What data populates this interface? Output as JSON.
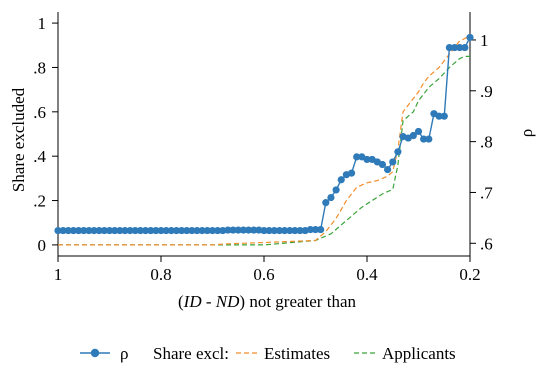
{
  "chart_data": {
    "type": "line",
    "xlabel": {
      "pre": "(",
      "it1": "ID",
      "mid": " - ",
      "it2": "ND",
      "post": ") not greater than"
    },
    "ylabel_left": "Share excluded",
    "ylabel_right": "ρ",
    "x_reversed": true,
    "xlim": [
      1.0,
      0.2
    ],
    "ylim_left": [
      -0.05,
      1.05
    ],
    "ylim_right": [
      0.575,
      1.055
    ],
    "x_ticks": [
      1.0,
      0.8,
      0.6,
      0.4,
      0.2
    ],
    "x_tick_labels": [
      "1",
      "0.8",
      "0.6",
      "0.4",
      "0.2"
    ],
    "y_left_ticks": [
      0,
      0.2,
      0.4,
      0.6,
      0.8,
      1.0
    ],
    "y_left_tick_labels": [
      "0",
      ".2",
      ".4",
      ".6",
      ".8",
      "1"
    ],
    "y_right_ticks": [
      0.6,
      0.7,
      0.8,
      0.9,
      1.0
    ],
    "y_right_tick_labels": [
      ".6",
      ".7",
      ".8",
      ".9",
      "1"
    ],
    "grid": false,
    "legend": {
      "position": "bottom",
      "items": [
        {
          "label": "ρ",
          "series": "rho"
        },
        {
          "label": "Share excl:",
          "series": null
        },
        {
          "label": "Estimates",
          "series": "estimates"
        },
        {
          "label": "Applicants",
          "series": "applicants"
        }
      ]
    },
    "colors": {
      "rho": "#2f7ab8",
      "estimates": "#f28e2b",
      "applicants": "#39a33a",
      "axis": "#000000"
    },
    "series": [
      {
        "name": "ρ",
        "key": "rho",
        "axis": "right",
        "style": "line-markers",
        "x": [
          1.0,
          0.99,
          0.98,
          0.97,
          0.96,
          0.95,
          0.94,
          0.93,
          0.92,
          0.91,
          0.9,
          0.89,
          0.88,
          0.87,
          0.86,
          0.85,
          0.84,
          0.83,
          0.82,
          0.81,
          0.8,
          0.79,
          0.78,
          0.77,
          0.76,
          0.75,
          0.74,
          0.73,
          0.72,
          0.71,
          0.7,
          0.69,
          0.68,
          0.67,
          0.66,
          0.65,
          0.64,
          0.63,
          0.62,
          0.61,
          0.6,
          0.59,
          0.58,
          0.57,
          0.56,
          0.55,
          0.54,
          0.53,
          0.52,
          0.51,
          0.5,
          0.49,
          0.48,
          0.47,
          0.46,
          0.45,
          0.44,
          0.43,
          0.42,
          0.41,
          0.4,
          0.39,
          0.38,
          0.37,
          0.36,
          0.35,
          0.34,
          0.33,
          0.32,
          0.31,
          0.3,
          0.29,
          0.28,
          0.27,
          0.26,
          0.25,
          0.24,
          0.23,
          0.22,
          0.21,
          0.2
        ],
        "values": [
          0.625,
          0.625,
          0.625,
          0.625,
          0.625,
          0.625,
          0.625,
          0.625,
          0.625,
          0.625,
          0.625,
          0.625,
          0.625,
          0.625,
          0.625,
          0.625,
          0.625,
          0.625,
          0.625,
          0.625,
          0.625,
          0.625,
          0.625,
          0.625,
          0.625,
          0.625,
          0.625,
          0.625,
          0.625,
          0.625,
          0.625,
          0.625,
          0.625,
          0.626,
          0.626,
          0.626,
          0.626,
          0.626,
          0.626,
          0.626,
          0.625,
          0.625,
          0.625,
          0.625,
          0.625,
          0.625,
          0.625,
          0.625,
          0.625,
          0.627,
          0.627,
          0.627,
          0.68,
          0.69,
          0.705,
          0.725,
          0.735,
          0.738,
          0.77,
          0.77,
          0.765,
          0.765,
          0.76,
          0.755,
          0.745,
          0.76,
          0.78,
          0.81,
          0.807,
          0.812,
          0.82,
          0.805,
          0.805,
          0.855,
          0.85,
          0.85,
          0.985,
          0.985,
          0.985,
          0.985,
          1.005
        ]
      },
      {
        "name": "Estimates",
        "key": "estimates",
        "axis": "left",
        "style": "dash",
        "x": [
          1.0,
          0.8,
          0.7,
          0.67,
          0.61,
          0.5,
          0.48,
          0.46,
          0.44,
          0.42,
          0.4,
          0.38,
          0.36,
          0.35,
          0.34,
          0.33,
          0.32,
          0.31,
          0.3,
          0.29,
          0.28,
          0.27,
          0.26,
          0.25,
          0.24,
          0.23,
          0.22,
          0.21,
          0.2
        ],
        "values": [
          0.0,
          0.0,
          0.0,
          0.005,
          0.01,
          0.02,
          0.06,
          0.12,
          0.2,
          0.26,
          0.28,
          0.29,
          0.31,
          0.33,
          0.43,
          0.6,
          0.63,
          0.66,
          0.69,
          0.73,
          0.76,
          0.78,
          0.8,
          0.83,
          0.86,
          0.89,
          0.92,
          0.93,
          0.95
        ]
      },
      {
        "name": "Applicants",
        "key": "applicants",
        "axis": "left",
        "style": "dash",
        "x": [
          1.0,
          0.8,
          0.7,
          0.66,
          0.6,
          0.5,
          0.47,
          0.45,
          0.43,
          0.41,
          0.39,
          0.37,
          0.35,
          0.34,
          0.33,
          0.31,
          0.3,
          0.28,
          0.26,
          0.24,
          0.22,
          0.21,
          0.2
        ],
        "values": [
          0.0,
          0.0,
          0.0,
          0.0,
          0.0,
          0.02,
          0.05,
          0.09,
          0.13,
          0.17,
          0.2,
          0.23,
          0.25,
          0.36,
          0.56,
          0.6,
          0.65,
          0.71,
          0.75,
          0.8,
          0.84,
          0.85,
          0.85
        ]
      }
    ]
  }
}
